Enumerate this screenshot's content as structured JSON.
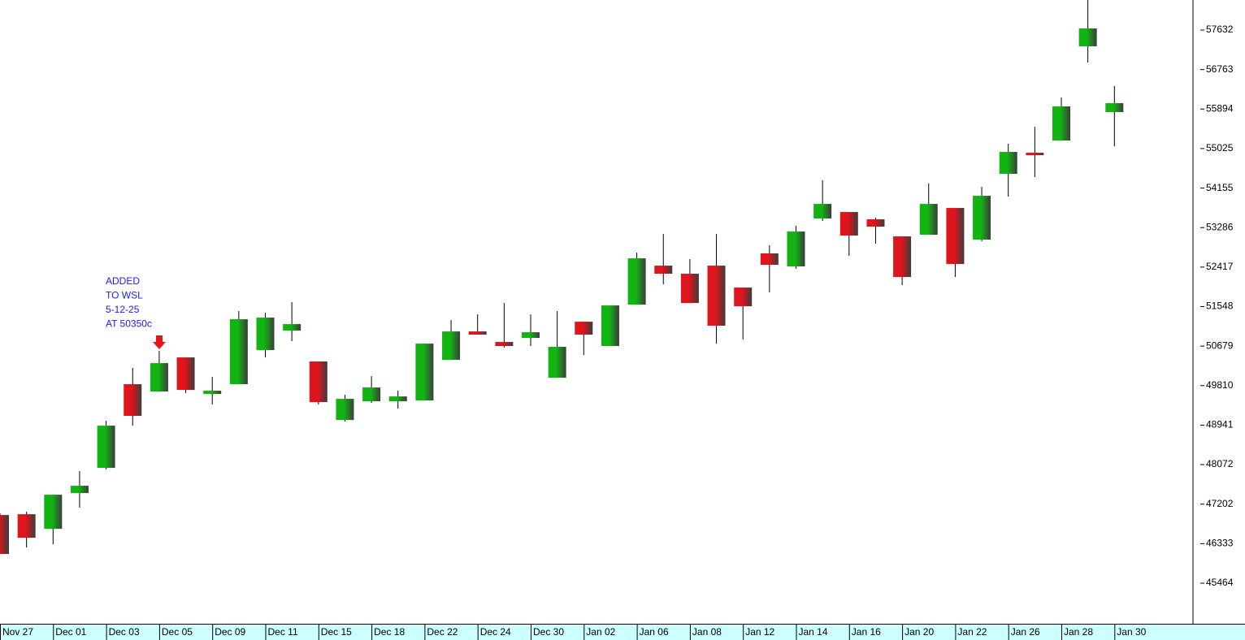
{
  "chart_data": {
    "type": "candlestick",
    "categories": [
      "Nov 27",
      null,
      "Dec 01",
      null,
      "Dec 03",
      null,
      "Dec 05",
      null,
      "Dec 09",
      null,
      "Dec 11",
      null,
      "Dec 15",
      null,
      "Dec 18",
      null,
      "Dec 22",
      null,
      "Dec 24",
      null,
      "Dec 30",
      null,
      "Jan 02",
      null,
      "Jan 06",
      null,
      "Jan 08",
      null,
      "Jan 12",
      null,
      "Jan 14",
      null,
      "Jan 16",
      null,
      "Jan 20",
      null,
      "Jan 22",
      null,
      "Jan 26",
      null,
      "Jan 28",
      null,
      "Jan 30"
    ],
    "open": [
      46963,
      46981,
      46660,
      47446,
      48000,
      49841,
      49680,
      50430,
      49626,
      49841,
      50591,
      51020,
      50341,
      49054,
      49465,
      49465,
      49483,
      50377,
      51002,
      50770,
      50859,
      49983,
      51216,
      50681,
      51592,
      52449,
      52271,
      52449,
      51967,
      52718,
      52432,
      53486,
      53629,
      53468,
      53093,
      53129,
      53718,
      53022,
      54469,
      54933,
      55201,
      57274,
      55827
    ],
    "high": [
      47000,
      47035,
      47410,
      47928,
      49036,
      50198,
      50573,
      50430,
      50001,
      51449,
      51413,
      51645,
      50341,
      49608,
      50019,
      49698,
      50734,
      51252,
      51377,
      51627,
      51377,
      51449,
      51216,
      51574,
      52735,
      53146,
      52593,
      53146,
      51967,
      52896,
      53325,
      54326,
      53629,
      53504,
      53093,
      54254,
      53718,
      54183,
      55130,
      55505,
      56149,
      58400,
      56399
    ],
    "low": [
      46106,
      46249,
      46320,
      47124,
      47964,
      48929,
      49680,
      49644,
      49394,
      49841,
      50430,
      50788,
      49394,
      49019,
      49430,
      49305,
      49483,
      50377,
      50931,
      50645,
      50681,
      49983,
      50484,
      50681,
      51592,
      52038,
      51627,
      50734,
      50823,
      51860,
      52378,
      53432,
      52664,
      52932,
      52021,
      53129,
      52199,
      52986,
      53968,
      54397,
      55201,
      56917,
      55076
    ],
    "close": [
      46106,
      46463,
      47410,
      47607,
      48929,
      49144,
      50305,
      49715,
      49698,
      51270,
      51306,
      51163,
      49447,
      49519,
      49769,
      49572,
      50734,
      51002,
      50931,
      50681,
      50984,
      50663,
      50931,
      51574,
      52610,
      52271,
      51627,
      51127,
      51556,
      52467,
      53200,
      53807,
      53111,
      53307,
      52199,
      53807,
      52485,
      53986,
      54951,
      54880,
      55952,
      57668,
      56024
    ],
    "up_color": "#12b412",
    "down_color": "#e0141c",
    "ylim": [
      44571,
      58293
    ],
    "yticks": [
      45464,
      46333,
      47202,
      48072,
      48941,
      49810,
      50679,
      51548,
      52417,
      53286,
      54155,
      55025,
      55894,
      56763,
      57632
    ],
    "annotation": [
      "ADDED",
      "TO WSL",
      "5-12-25",
      "AT 50350c"
    ],
    "annotation_color": "#1a1aff"
  }
}
